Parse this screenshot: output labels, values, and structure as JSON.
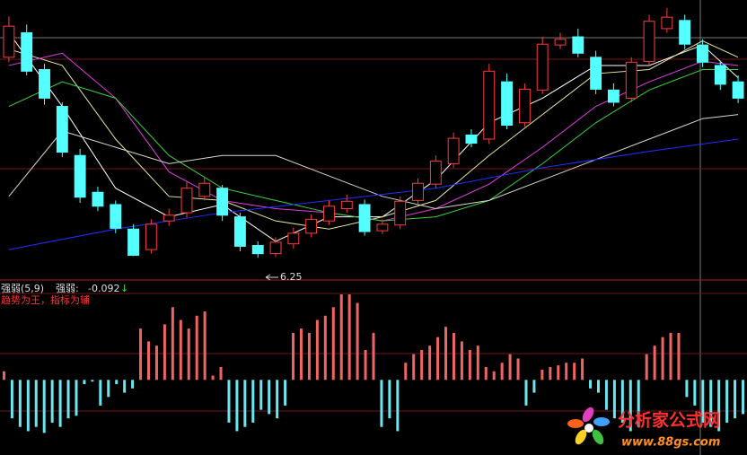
{
  "chart_data": [
    {
      "type": "candlestick",
      "open": [
        8.7,
        9.0,
        8.55,
        8.1,
        7.5,
        7.05,
        6.9,
        6.6,
        6.35,
        6.7,
        6.8,
        7.0,
        7.1,
        6.75,
        6.4,
        6.3,
        6.42,
        6.55,
        6.7,
        6.85,
        6.9,
        6.58,
        6.65,
        6.95,
        7.15,
        7.4,
        7.75,
        7.7,
        8.4,
        7.9,
        8.3,
        8.85,
        8.95,
        8.7,
        8.3,
        8.2,
        8.65,
        9.05,
        9.15,
        8.85,
        8.6,
        8.4
      ],
      "high": [
        9.2,
        9.1,
        8.62,
        8.15,
        7.58,
        7.12,
        6.95,
        6.66,
        6.72,
        6.85,
        7.18,
        7.24,
        7.14,
        6.8,
        6.45,
        6.5,
        6.62,
        6.78,
        6.95,
        7.02,
        6.96,
        6.72,
        7.0,
        7.22,
        7.5,
        7.78,
        7.82,
        8.62,
        8.5,
        8.38,
        8.95,
        9.0,
        9.05,
        8.78,
        8.38,
        8.7,
        9.22,
        9.3,
        9.22,
        8.92,
        8.66,
        8.48
      ],
      "low": [
        8.64,
        8.48,
        8.12,
        7.48,
        6.92,
        6.82,
        6.55,
        6.27,
        6.3,
        6.64,
        6.74,
        6.95,
        6.7,
        6.33,
        6.25,
        6.26,
        6.36,
        6.5,
        6.65,
        6.8,
        6.52,
        6.54,
        6.6,
        6.9,
        7.1,
        7.35,
        7.6,
        7.64,
        7.82,
        7.85,
        8.25,
        8.8,
        8.7,
        8.25,
        8.1,
        8.15,
        8.6,
        9.0,
        8.8,
        8.58,
        8.3,
        8.14
      ],
      "close": [
        9.08,
        8.53,
        8.2,
        7.54,
        6.99,
        6.88,
        6.61,
        6.28,
        6.66,
        6.77,
        7.1,
        7.16,
        6.77,
        6.39,
        6.3,
        6.44,
        6.55,
        6.72,
        6.88,
        6.94,
        6.57,
        6.66,
        6.94,
        7.16,
        7.43,
        7.71,
        7.65,
        8.53,
        7.87,
        8.31,
        8.86,
        8.92,
        8.75,
        8.31,
        8.15,
        8.64,
        9.14,
        9.19,
        8.86,
        8.64,
        8.37,
        8.2
      ],
      "up_color": "#ff3c3c",
      "down_color": "#54ffff",
      "ylim": [
        6.0,
        9.4
      ],
      "lines": [
        {
          "color": "#ffffff",
          "x": [
            0,
            3,
            6,
            9,
            12,
            15,
            18,
            21,
            24,
            27,
            30,
            33,
            36,
            39,
            41
          ],
          "values": [
            9.0,
            8.1,
            7.1,
            6.75,
            6.9,
            6.45,
            6.75,
            6.75,
            7.2,
            7.9,
            8.2,
            8.6,
            8.6,
            8.85,
            8.45
          ]
        },
        {
          "color": "#e8e8a0",
          "x": [
            0,
            3,
            6,
            9,
            12,
            15,
            18,
            21,
            24,
            27,
            30,
            33,
            36,
            39,
            41
          ],
          "values": [
            8.8,
            8.6,
            7.7,
            7.0,
            6.95,
            6.7,
            6.6,
            6.75,
            6.95,
            7.5,
            8.0,
            8.5,
            8.55,
            8.9,
            8.7
          ]
        },
        {
          "color": "#e040e0",
          "x": [
            0,
            3,
            6,
            9,
            12,
            15,
            18,
            21,
            24,
            27,
            30,
            33,
            36,
            39,
            41
          ],
          "values": [
            8.6,
            8.75,
            8.2,
            7.3,
            6.95,
            6.85,
            6.8,
            6.7,
            6.85,
            7.15,
            7.6,
            8.1,
            8.4,
            8.65,
            8.6
          ]
        },
        {
          "color": "#40d040",
          "x": [
            0,
            3,
            6,
            9,
            12,
            15,
            18,
            21,
            24,
            27,
            30,
            33,
            36,
            39,
            41
          ],
          "values": [
            8.1,
            8.4,
            8.2,
            7.5,
            7.1,
            6.95,
            6.8,
            6.7,
            6.75,
            6.95,
            7.4,
            7.9,
            8.3,
            8.55,
            8.55
          ]
        },
        {
          "color": "#d8d8c8",
          "x": [
            0,
            3,
            6,
            9,
            12,
            15,
            18,
            21,
            24,
            27,
            30,
            33,
            36,
            39,
            41
          ],
          "values": [
            7.0,
            7.8,
            7.6,
            7.4,
            7.5,
            7.5,
            7.25,
            7.0,
            6.85,
            6.95,
            7.2,
            7.45,
            7.7,
            7.95,
            8.0
          ]
        },
        {
          "color": "#2030ff",
          "x": [
            0,
            6,
            12,
            18,
            24,
            30,
            36,
            41
          ],
          "values": [
            6.35,
            6.6,
            6.8,
            6.95,
            7.1,
            7.35,
            7.55,
            7.7
          ]
        }
      ]
    },
    {
      "type": "bar",
      "title": "强弱(5,9)",
      "value_name": "强弱:",
      "value": -0.092,
      "trend_arrow": "↓",
      "note": "趋势为王，指标为辅",
      "values": [
        0.1,
        -0.45,
        -0.55,
        -0.6,
        -0.55,
        -0.62,
        -0.5,
        -0.55,
        -0.45,
        -0.42,
        -0.05,
        -0.02,
        -0.3,
        -0.2,
        -0.05,
        -0.15,
        -0.1,
        0.6,
        0.45,
        0.4,
        0.65,
        0.85,
        0.7,
        0.6,
        0.75,
        0.8,
        0.05,
        0.15,
        -0.5,
        -0.6,
        -0.55,
        -0.5,
        -0.35,
        -0.4,
        -0.45,
        -0.3,
        0.55,
        0.6,
        0.55,
        0.7,
        0.75,
        0.85,
        1.0,
        1.0,
        0.9,
        0.35,
        0.55,
        -0.55,
        -0.45,
        -0.6,
        0.2,
        0.3,
        0.35,
        0.4,
        0.5,
        0.62,
        0.55,
        0.45,
        0.35,
        0.4,
        0.15,
        0.1,
        0.2,
        0.3,
        0.25,
        -0.3,
        -0.15,
        0.12,
        0.15,
        0.17,
        0.2,
        0.2,
        0.25,
        -0.1,
        -0.15,
        -0.35,
        -0.45,
        -0.5,
        -0.6,
        -0.55,
        0.3,
        0.4,
        0.5,
        0.55,
        0.55,
        -0.2,
        -0.3,
        -0.5,
        -0.55,
        -0.6,
        -0.5,
        -0.45,
        -0.4
      ],
      "up_color": "#f06464",
      "down_color": "#6ae6ee",
      "ylim": [
        -0.7,
        1.0
      ]
    }
  ],
  "watermark": {
    "name": "分析家公式网",
    "url": "www.88gs.com"
  }
}
